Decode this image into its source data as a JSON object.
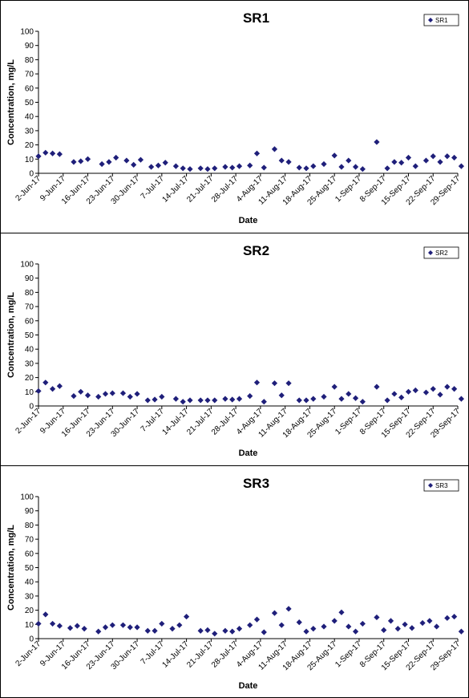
{
  "chart_data": [
    {
      "type": "scatter",
      "title": "SR1",
      "xlabel": "Date",
      "ylabel": "Concentration, mg/L",
      "ylim": [
        0,
        100
      ],
      "yticks": [
        "0",
        "10",
        "20",
        "30",
        "40",
        "50",
        "60",
        "70",
        "80",
        "90",
        "100"
      ],
      "xlim": [
        "2017-06-02",
        "2017-09-29"
      ],
      "xticks": [
        {
          "date": "2017-06-02",
          "label": "2-Jun-17"
        },
        {
          "date": "2017-06-09",
          "label": "9-Jun-17"
        },
        {
          "date": "2017-06-16",
          "label": "16-Jun-17"
        },
        {
          "date": "2017-06-23",
          "label": "23-Jun-17"
        },
        {
          "date": "2017-06-30",
          "label": "30-Jun-17"
        },
        {
          "date": "2017-07-07",
          "label": "7-Jul-17"
        },
        {
          "date": "2017-07-14",
          "label": "14-Jul-17"
        },
        {
          "date": "2017-07-21",
          "label": "21-Jul-17"
        },
        {
          "date": "2017-07-28",
          "label": "28-Jul-17"
        },
        {
          "date": "2017-08-04",
          "label": "4-Aug-17"
        },
        {
          "date": "2017-08-11",
          "label": "11-Aug-17"
        },
        {
          "date": "2017-08-18",
          "label": "18-Aug-17"
        },
        {
          "date": "2017-08-25",
          "label": "25-Aug-17"
        },
        {
          "date": "2017-09-01",
          "label": "1-Sep-17"
        },
        {
          "date": "2017-09-08",
          "label": "8-Sep-17"
        },
        {
          "date": "2017-09-15",
          "label": "15-Sep-17"
        },
        {
          "date": "2017-09-22",
          "label": "22-Sep-17"
        },
        {
          "date": "2017-09-29",
          "label": "29-Sep-17"
        }
      ],
      "legend": "top-right",
      "grid": false,
      "marker_color": "#1f1f7a",
      "series": [
        {
          "name": "SR1",
          "points": [
            {
              "x": "2017-06-02",
              "y": 12
            },
            {
              "x": "2017-06-04",
              "y": 14.5
            },
            {
              "x": "2017-06-06",
              "y": 14
            },
            {
              "x": "2017-06-08",
              "y": 13.5
            },
            {
              "x": "2017-06-12",
              "y": 8
            },
            {
              "x": "2017-06-14",
              "y": 8.5
            },
            {
              "x": "2017-06-16",
              "y": 10
            },
            {
              "x": "2017-06-20",
              "y": 6.5
            },
            {
              "x": "2017-06-22",
              "y": 8
            },
            {
              "x": "2017-06-24",
              "y": 11
            },
            {
              "x": "2017-06-27",
              "y": 9
            },
            {
              "x": "2017-06-29",
              "y": 6
            },
            {
              "x": "2017-07-01",
              "y": 9.5
            },
            {
              "x": "2017-07-04",
              "y": 4.5
            },
            {
              "x": "2017-07-06",
              "y": 5.5
            },
            {
              "x": "2017-07-08",
              "y": 7.5
            },
            {
              "x": "2017-07-11",
              "y": 5
            },
            {
              "x": "2017-07-13",
              "y": 3.5
            },
            {
              "x": "2017-07-15",
              "y": 3
            },
            {
              "x": "2017-07-18",
              "y": 3.5
            },
            {
              "x": "2017-07-20",
              "y": 3
            },
            {
              "x": "2017-07-22",
              "y": 3.5
            },
            {
              "x": "2017-07-25",
              "y": 4.5
            },
            {
              "x": "2017-07-27",
              "y": 4
            },
            {
              "x": "2017-07-29",
              "y": 5
            },
            {
              "x": "2017-08-01",
              "y": 5.5
            },
            {
              "x": "2017-08-03",
              "y": 14
            },
            {
              "x": "2017-08-05",
              "y": 4
            },
            {
              "x": "2017-08-08",
              "y": 17
            },
            {
              "x": "2017-08-10",
              "y": 9
            },
            {
              "x": "2017-08-12",
              "y": 8
            },
            {
              "x": "2017-08-15",
              "y": 4
            },
            {
              "x": "2017-08-17",
              "y": 3.5
            },
            {
              "x": "2017-08-19",
              "y": 5
            },
            {
              "x": "2017-08-22",
              "y": 6.5
            },
            {
              "x": "2017-08-25",
              "y": 12.5
            },
            {
              "x": "2017-08-27",
              "y": 4.5
            },
            {
              "x": "2017-08-29",
              "y": 9
            },
            {
              "x": "2017-08-31",
              "y": 4.5
            },
            {
              "x": "2017-09-02",
              "y": 3
            },
            {
              "x": "2017-09-06",
              "y": 22
            },
            {
              "x": "2017-09-09",
              "y": 3.5
            },
            {
              "x": "2017-09-11",
              "y": 8
            },
            {
              "x": "2017-09-13",
              "y": 7.5
            },
            {
              "x": "2017-09-15",
              "y": 11
            },
            {
              "x": "2017-09-17",
              "y": 5
            },
            {
              "x": "2017-09-20",
              "y": 9
            },
            {
              "x": "2017-09-22",
              "y": 12
            },
            {
              "x": "2017-09-24",
              "y": 8
            },
            {
              "x": "2017-09-26",
              "y": 12
            },
            {
              "x": "2017-09-28",
              "y": 11
            },
            {
              "x": "2017-09-30",
              "y": 5
            }
          ]
        }
      ]
    },
    {
      "type": "scatter",
      "title": "SR2",
      "xlabel": "Date",
      "ylabel": "Concentration, mg/L",
      "ylim": [
        0,
        100
      ],
      "yticks": [
        "0",
        "10",
        "20",
        "30",
        "40",
        "50",
        "60",
        "70",
        "80",
        "90",
        "100"
      ],
      "xlim": [
        "2017-06-02",
        "2017-09-29"
      ],
      "xticks": [
        {
          "date": "2017-06-02",
          "label": "2-Jun-17"
        },
        {
          "date": "2017-06-09",
          "label": "9-Jun-17"
        },
        {
          "date": "2017-06-16",
          "label": "16-Jun-17"
        },
        {
          "date": "2017-06-23",
          "label": "23-Jun-17"
        },
        {
          "date": "2017-06-30",
          "label": "30-Jun-17"
        },
        {
          "date": "2017-07-07",
          "label": "7-Jul-17"
        },
        {
          "date": "2017-07-14",
          "label": "14-Jul-17"
        },
        {
          "date": "2017-07-21",
          "label": "21-Jul-17"
        },
        {
          "date": "2017-07-28",
          "label": "28-Jul-17"
        },
        {
          "date": "2017-08-04",
          "label": "4-Aug-17"
        },
        {
          "date": "2017-08-11",
          "label": "11-Aug-17"
        },
        {
          "date": "2017-08-18",
          "label": "18-Aug-17"
        },
        {
          "date": "2017-08-25",
          "label": "25-Aug-17"
        },
        {
          "date": "2017-09-01",
          "label": "1-Sep-17"
        },
        {
          "date": "2017-09-08",
          "label": "8-Sep-17"
        },
        {
          "date": "2017-09-15",
          "label": "15-Sep-17"
        },
        {
          "date": "2017-09-22",
          "label": "22-Sep-17"
        },
        {
          "date": "2017-09-29",
          "label": "29-Sep-17"
        }
      ],
      "legend": "top-right",
      "grid": false,
      "marker_color": "#1f1f7a",
      "series": [
        {
          "name": "SR2",
          "points": [
            {
              "x": "2017-06-02",
              "y": 10.5
            },
            {
              "x": "2017-06-04",
              "y": 16.5
            },
            {
              "x": "2017-06-06",
              "y": 12
            },
            {
              "x": "2017-06-08",
              "y": 14
            },
            {
              "x": "2017-06-12",
              "y": 7
            },
            {
              "x": "2017-06-14",
              "y": 10
            },
            {
              "x": "2017-06-16",
              "y": 7.5
            },
            {
              "x": "2017-06-19",
              "y": 6.5
            },
            {
              "x": "2017-06-21",
              "y": 8.5
            },
            {
              "x": "2017-06-23",
              "y": 9
            },
            {
              "x": "2017-06-26",
              "y": 9
            },
            {
              "x": "2017-06-28",
              "y": 6.5
            },
            {
              "x": "2017-06-30",
              "y": 8.5
            },
            {
              "x": "2017-07-03",
              "y": 4
            },
            {
              "x": "2017-07-05",
              "y": 4.5
            },
            {
              "x": "2017-07-07",
              "y": 6.5
            },
            {
              "x": "2017-07-11",
              "y": 5
            },
            {
              "x": "2017-07-13",
              "y": 3
            },
            {
              "x": "2017-07-15",
              "y": 4
            },
            {
              "x": "2017-07-18",
              "y": 4
            },
            {
              "x": "2017-07-20",
              "y": 4
            },
            {
              "x": "2017-07-22",
              "y": 4
            },
            {
              "x": "2017-07-25",
              "y": 5
            },
            {
              "x": "2017-07-27",
              "y": 4.5
            },
            {
              "x": "2017-07-29",
              "y": 5
            },
            {
              "x": "2017-08-01",
              "y": 7
            },
            {
              "x": "2017-08-03",
              "y": 16.5
            },
            {
              "x": "2017-08-05",
              "y": 3
            },
            {
              "x": "2017-08-08",
              "y": 16
            },
            {
              "x": "2017-08-10",
              "y": 7.5
            },
            {
              "x": "2017-08-12",
              "y": 16
            },
            {
              "x": "2017-08-15",
              "y": 4
            },
            {
              "x": "2017-08-17",
              "y": 4
            },
            {
              "x": "2017-08-19",
              "y": 5
            },
            {
              "x": "2017-08-22",
              "y": 6.5
            },
            {
              "x": "2017-08-25",
              "y": 13.5
            },
            {
              "x": "2017-08-27",
              "y": 5
            },
            {
              "x": "2017-08-29",
              "y": 8.5
            },
            {
              "x": "2017-08-31",
              "y": 5.5
            },
            {
              "x": "2017-09-02",
              "y": 3
            },
            {
              "x": "2017-09-06",
              "y": 13.5
            },
            {
              "x": "2017-09-09",
              "y": 4
            },
            {
              "x": "2017-09-11",
              "y": 8.5
            },
            {
              "x": "2017-09-13",
              "y": 6
            },
            {
              "x": "2017-09-15",
              "y": 10
            },
            {
              "x": "2017-09-17",
              "y": 11
            },
            {
              "x": "2017-09-20",
              "y": 9.5
            },
            {
              "x": "2017-09-22",
              "y": 12
            },
            {
              "x": "2017-09-24",
              "y": 8
            },
            {
              "x": "2017-09-26",
              "y": 13.5
            },
            {
              "x": "2017-09-28",
              "y": 12
            },
            {
              "x": "2017-09-30",
              "y": 5
            }
          ]
        }
      ]
    },
    {
      "type": "scatter",
      "title": "SR3",
      "xlabel": "Date",
      "ylabel": "Concentration, mg/L",
      "ylim": [
        0,
        100
      ],
      "yticks": [
        "0",
        "10",
        "20",
        "30",
        "40",
        "50",
        "60",
        "70",
        "80",
        "90",
        "100"
      ],
      "xlim": [
        "2017-06-02",
        "2017-09-29"
      ],
      "xticks": [
        {
          "date": "2017-06-02",
          "label": "2-Jun-17"
        },
        {
          "date": "2017-06-09",
          "label": "9-Jun-17"
        },
        {
          "date": "2017-06-16",
          "label": "16-Jun-17"
        },
        {
          "date": "2017-06-23",
          "label": "23-Jun-17"
        },
        {
          "date": "2017-06-30",
          "label": "30-Jun-17"
        },
        {
          "date": "2017-07-07",
          "label": "7-Jul-17"
        },
        {
          "date": "2017-07-14",
          "label": "14-Jul-17"
        },
        {
          "date": "2017-07-21",
          "label": "21-Jul-17"
        },
        {
          "date": "2017-07-28",
          "label": "28-Jul-17"
        },
        {
          "date": "2017-08-04",
          "label": "4-Aug-17"
        },
        {
          "date": "2017-08-11",
          "label": "11-Aug-17"
        },
        {
          "date": "2017-08-18",
          "label": "18-Aug-17"
        },
        {
          "date": "2017-08-25",
          "label": "25-Aug-17"
        },
        {
          "date": "2017-09-01",
          "label": "1-Sep-17"
        },
        {
          "date": "2017-09-08",
          "label": "8-Sep-17"
        },
        {
          "date": "2017-09-15",
          "label": "15-Sep-17"
        },
        {
          "date": "2017-09-22",
          "label": "22-Sep-17"
        },
        {
          "date": "2017-09-29",
          "label": "29-Sep-17"
        }
      ],
      "legend": "top-right",
      "grid": false,
      "marker_color": "#1f1f7a",
      "series": [
        {
          "name": "SR3",
          "points": [
            {
              "x": "2017-06-02",
              "y": 10.5
            },
            {
              "x": "2017-06-04",
              "y": 17
            },
            {
              "x": "2017-06-06",
              "y": 10.5
            },
            {
              "x": "2017-06-08",
              "y": 9
            },
            {
              "x": "2017-06-11",
              "y": 7.5
            },
            {
              "x": "2017-06-13",
              "y": 9
            },
            {
              "x": "2017-06-15",
              "y": 7
            },
            {
              "x": "2017-06-19",
              "y": 5
            },
            {
              "x": "2017-06-21",
              "y": 8
            },
            {
              "x": "2017-06-23",
              "y": 9.5
            },
            {
              "x": "2017-06-26",
              "y": 9.5
            },
            {
              "x": "2017-06-28",
              "y": 8
            },
            {
              "x": "2017-06-30",
              "y": 8
            },
            {
              "x": "2017-07-03",
              "y": 5.5
            },
            {
              "x": "2017-07-05",
              "y": 5.5
            },
            {
              "x": "2017-07-07",
              "y": 10.5
            },
            {
              "x": "2017-07-10",
              "y": 7
            },
            {
              "x": "2017-07-12",
              "y": 9.5
            },
            {
              "x": "2017-07-14",
              "y": 15.5
            },
            {
              "x": "2017-07-18",
              "y": 5.5
            },
            {
              "x": "2017-07-20",
              "y": 6
            },
            {
              "x": "2017-07-22",
              "y": 3.5
            },
            {
              "x": "2017-07-25",
              "y": 5.5
            },
            {
              "x": "2017-07-27",
              "y": 5
            },
            {
              "x": "2017-07-29",
              "y": 7
            },
            {
              "x": "2017-08-01",
              "y": 9.5
            },
            {
              "x": "2017-08-03",
              "y": 13.5
            },
            {
              "x": "2017-08-05",
              "y": 4.5
            },
            {
              "x": "2017-08-08",
              "y": 18
            },
            {
              "x": "2017-08-10",
              "y": 9.5
            },
            {
              "x": "2017-08-12",
              "y": 21
            },
            {
              "x": "2017-08-15",
              "y": 11.5
            },
            {
              "x": "2017-08-17",
              "y": 5
            },
            {
              "x": "2017-08-19",
              "y": 7
            },
            {
              "x": "2017-08-22",
              "y": 8.5
            },
            {
              "x": "2017-08-25",
              "y": 12.5
            },
            {
              "x": "2017-08-27",
              "y": 18.5
            },
            {
              "x": "2017-08-29",
              "y": 8.5
            },
            {
              "x": "2017-08-31",
              "y": 5
            },
            {
              "x": "2017-09-02",
              "y": 10.5
            },
            {
              "x": "2017-09-06",
              "y": 15
            },
            {
              "x": "2017-09-08",
              "y": 6
            },
            {
              "x": "2017-09-10",
              "y": 12.5
            },
            {
              "x": "2017-09-12",
              "y": 7
            },
            {
              "x": "2017-09-14",
              "y": 10
            },
            {
              "x": "2017-09-16",
              "y": 7.5
            },
            {
              "x": "2017-09-19",
              "y": 11
            },
            {
              "x": "2017-09-21",
              "y": 12.5
            },
            {
              "x": "2017-09-23",
              "y": 8.5
            },
            {
              "x": "2017-09-26",
              "y": 14.5
            },
            {
              "x": "2017-09-28",
              "y": 15.5
            },
            {
              "x": "2017-09-30",
              "y": 5
            }
          ]
        }
      ]
    }
  ]
}
